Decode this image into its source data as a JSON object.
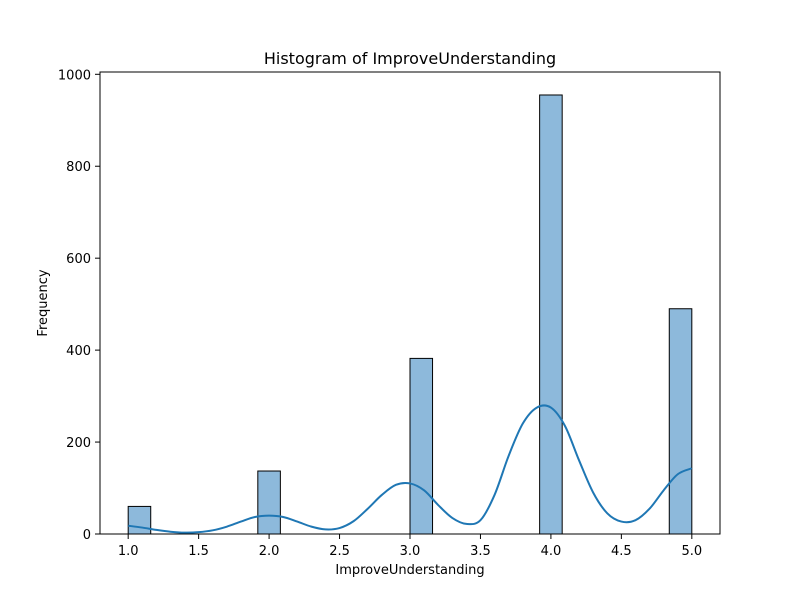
{
  "chart_data": {
    "type": "bar",
    "title": "Histogram of ImproveUnderstanding",
    "xlabel": "ImproveUnderstanding",
    "ylabel": "Frequency",
    "xlim": [
      0.8,
      5.2
    ],
    "ylim": [
      0,
      1005
    ],
    "x_ticks": [
      "1.0",
      "1.5",
      "2.0",
      "2.5",
      "3.0",
      "3.5",
      "4.0",
      "4.5",
      "5.0"
    ],
    "y_ticks": [
      "0",
      "200",
      "400",
      "600",
      "800",
      "1000"
    ],
    "bins": [
      {
        "x0": 1.0,
        "x1": 1.16,
        "value": 60
      },
      {
        "x0": 1.92,
        "x1": 2.08,
        "value": 137
      },
      {
        "x0": 3.0,
        "x1": 3.16,
        "value": 382
      },
      {
        "x0": 3.92,
        "x1": 4.08,
        "value": 955
      },
      {
        "x0": 4.84,
        "x1": 5.0,
        "value": 490
      }
    ],
    "kde_line": {
      "x": [
        1.0,
        1.1,
        1.2,
        1.3,
        1.4,
        1.5,
        1.6,
        1.7,
        1.8,
        1.9,
        2.0,
        2.1,
        2.2,
        2.3,
        2.4,
        2.5,
        2.6,
        2.7,
        2.8,
        2.9,
        3.0,
        3.1,
        3.2,
        3.3,
        3.4,
        3.5,
        3.6,
        3.7,
        3.8,
        3.9,
        4.0,
        4.1,
        4.2,
        4.3,
        4.4,
        4.5,
        4.6,
        4.7,
        4.8,
        4.9,
        5.0
      ],
      "y": [
        18,
        14,
        9,
        5,
        3,
        4,
        8,
        16,
        27,
        37,
        40,
        37,
        27,
        16,
        10,
        13,
        28,
        55,
        85,
        107,
        110,
        95,
        63,
        35,
        22,
        30,
        85,
        170,
        240,
        275,
        275,
        235,
        160,
        90,
        45,
        27,
        30,
        55,
        95,
        130,
        143
      ]
    },
    "colors": {
      "bar_fill": "#8db9db",
      "bar_edge": "#000000",
      "kde_line": "#1f77b4"
    },
    "grid": false,
    "legend": false
  }
}
